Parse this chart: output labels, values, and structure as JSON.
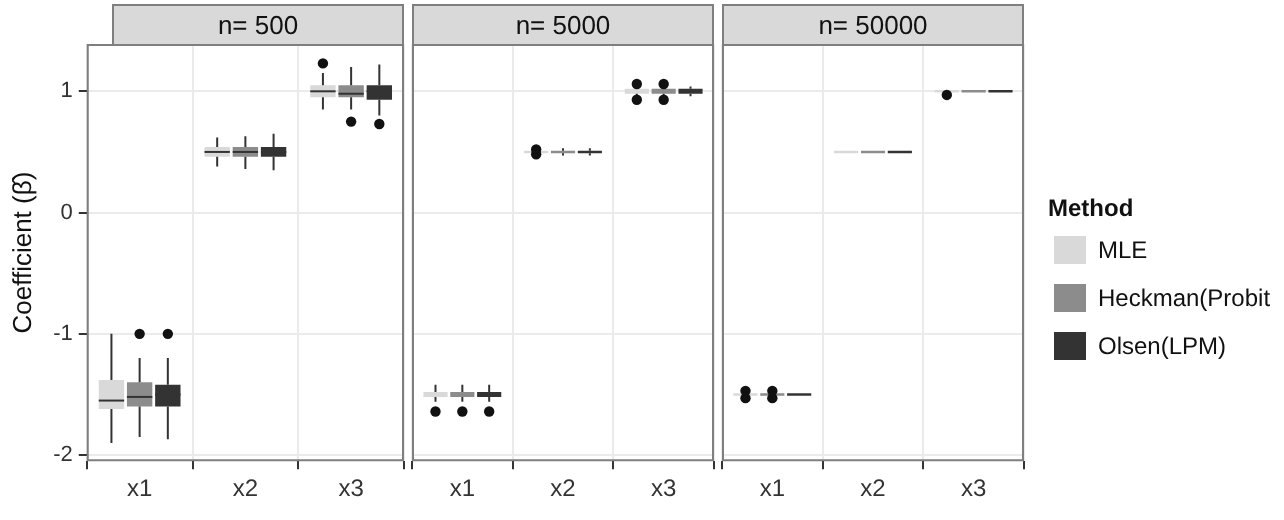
{
  "chart_data": [
    {
      "type": "box",
      "title": "n= 500",
      "ylabel": "Coefficient (β̂)",
      "categories": [
        "x1",
        "x2",
        "x3"
      ],
      "ylim": [
        -2.05,
        1.39
      ],
      "yticks": [
        -2,
        -1,
        0,
        1
      ],
      "grid": true,
      "legend": "right",
      "legend_title": "Method",
      "series": [
        {
          "name": "MLE",
          "color": "#d9d9d9",
          "boxes": [
            {
              "low": -1.9,
              "q1": -1.62,
              "median": -1.55,
              "q3": -1.38,
              "high": -1.0
            },
            {
              "low": 0.38,
              "q1": 0.46,
              "median": 0.5,
              "q3": 0.54,
              "high": 0.62
            },
            {
              "low": 0.85,
              "q1": 0.95,
              "median": 1.0,
              "q3": 1.05,
              "high": 1.15,
              "outliers": [
                1.23
              ]
            }
          ]
        },
        {
          "name": "Heckman(Probit",
          "color": "#8c8c8c",
          "boxes": [
            {
              "low": -1.85,
              "q1": -1.6,
              "median": -1.52,
              "q3": -1.4,
              "high": -1.2,
              "outliers": [
                -1.0
              ]
            },
            {
              "low": 0.36,
              "q1": 0.46,
              "median": 0.5,
              "q3": 0.54,
              "high": 0.63
            },
            {
              "low": 0.85,
              "q1": 0.95,
              "median": 0.98,
              "q3": 1.05,
              "high": 1.2,
              "outliers": [
                0.75
              ]
            }
          ]
        },
        {
          "name": "Olsen(LPM)",
          "color": "#333333",
          "boxes": [
            {
              "low": -1.87,
              "q1": -1.6,
              "median": -1.5,
              "q3": -1.42,
              "high": -1.2,
              "outliers": [
                -1.0
              ]
            },
            {
              "low": 0.35,
              "q1": 0.46,
              "median": 0.5,
              "q3": 0.54,
              "high": 0.65
            },
            {
              "low": 0.8,
              "q1": 0.93,
              "median": 1.0,
              "q3": 1.05,
              "high": 1.22,
              "outliers": [
                0.73
              ]
            }
          ]
        }
      ]
    },
    {
      "type": "box",
      "title": "n= 5000",
      "categories": [
        "x1",
        "x2",
        "x3"
      ],
      "ylim": [
        -2.05,
        1.39
      ],
      "yticks": [
        -2,
        -1,
        0,
        1
      ],
      "grid": true,
      "tick_labels": "x",
      "series": [
        {
          "color": "#d9d9d9",
          "boxes": [
            {
              "low": -1.56,
              "q1": -1.52,
              "median": -1.5,
              "q3": -1.48,
              "high": -1.42,
              "outliers": [
                -1.64
              ]
            },
            {
              "low": 0.48,
              "q1": 0.49,
              "median": 0.5,
              "q3": 0.51,
              "high": 0.52,
              "outliers": [
                0.48,
                0.52
              ]
            },
            {
              "low": 0.95,
              "q1": 0.98,
              "median": 1.0,
              "q3": 1.02,
              "high": 1.05,
              "outliers": [
                0.93,
                1.06
              ]
            }
          ]
        },
        {
          "color": "#8c8c8c",
          "boxes": [
            {
              "low": -1.56,
              "q1": -1.52,
              "median": -1.5,
              "q3": -1.48,
              "high": -1.42,
              "outliers": [
                -1.64
              ]
            },
            {
              "low": 0.47,
              "q1": 0.49,
              "median": 0.5,
              "q3": 0.51,
              "high": 0.53
            },
            {
              "low": 0.95,
              "q1": 0.98,
              "median": 1.0,
              "q3": 1.02,
              "high": 1.05,
              "outliers": [
                0.93,
                1.06
              ]
            }
          ]
        },
        {
          "color": "#333333",
          "boxes": [
            {
              "low": -1.56,
              "q1": -1.52,
              "median": -1.5,
              "q3": -1.48,
              "high": -1.42,
              "outliers": [
                -1.64
              ]
            },
            {
              "low": 0.47,
              "q1": 0.49,
              "median": 0.5,
              "q3": 0.51,
              "high": 0.53
            },
            {
              "low": 0.96,
              "q1": 0.98,
              "median": 1.0,
              "q3": 1.02,
              "high": 1.04
            }
          ]
        }
      ]
    },
    {
      "type": "box",
      "title": "n= 50000",
      "categories": [
        "x1",
        "x2",
        "x3"
      ],
      "ylim": [
        -2.05,
        1.39
      ],
      "yticks": [
        -2,
        -1,
        0,
        1
      ],
      "grid": true,
      "tick_labels": "x",
      "series": [
        {
          "color": "#d9d9d9",
          "boxes": [
            {
              "low": -1.51,
              "q1": -1.51,
              "median": -1.5,
              "q3": -1.49,
              "high": -1.49,
              "outliers": [
                -1.53,
                -1.47
              ]
            },
            {
              "low": 0.49,
              "q1": 0.49,
              "median": 0.5,
              "q3": 0.51,
              "high": 0.51
            },
            {
              "low": 0.99,
              "q1": 0.99,
              "median": 1.0,
              "q3": 1.01,
              "high": 1.01,
              "outliers": [
                0.97
              ]
            }
          ]
        },
        {
          "color": "#8c8c8c",
          "boxes": [
            {
              "low": -1.51,
              "q1": -1.51,
              "median": -1.5,
              "q3": -1.49,
              "high": -1.49,
              "outliers": [
                -1.53,
                -1.47
              ]
            },
            {
              "low": 0.49,
              "q1": 0.49,
              "median": 0.5,
              "q3": 0.51,
              "high": 0.51
            },
            {
              "low": 0.99,
              "q1": 0.99,
              "median": 1.0,
              "q3": 1.01,
              "high": 1.01
            }
          ]
        },
        {
          "color": "#333333",
          "boxes": [
            {
              "low": -1.51,
              "q1": -1.51,
              "median": -1.5,
              "q3": -1.49,
              "high": -1.49
            },
            {
              "low": 0.49,
              "q1": 0.49,
              "median": 0.5,
              "q3": 0.51,
              "high": 0.51
            },
            {
              "low": 0.99,
              "q1": 0.99,
              "median": 1.0,
              "q3": 1.01,
              "high": 1.01
            }
          ]
        }
      ]
    }
  ]
}
